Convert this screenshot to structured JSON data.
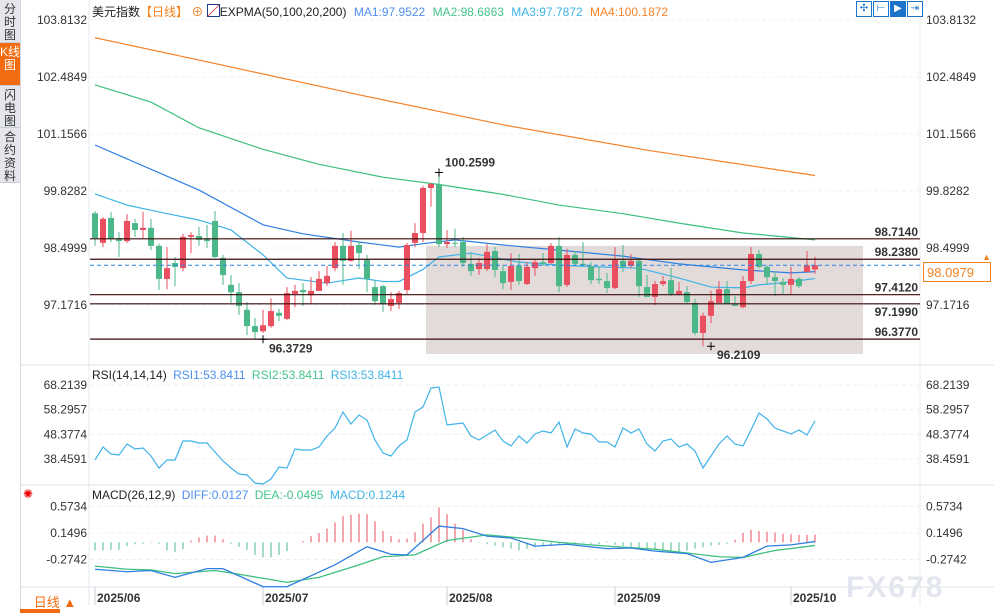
{
  "sidebar": {
    "tabs": [
      {
        "label": "分时图",
        "active": false
      },
      {
        "label": "K线图",
        "active": true
      },
      {
        "label": "闪电图",
        "active": false
      },
      {
        "label": "合约资料",
        "active": false
      }
    ]
  },
  "header": {
    "symbol": "美元指数",
    "period": "【日线】",
    "indicator": "EXPMA(50,100,20,200)",
    "ma1": "MA1:97.9522",
    "ma2": "MA2:98.6863",
    "ma3": "MA3:97.7872",
    "ma4": "MA4:100.1872",
    "tools": [
      "crosshair-icon",
      "range-select-icon",
      "play-forward-icon",
      "exit-right-icon"
    ]
  },
  "rsi_header": {
    "title": "RSI(14,14,14)",
    "rsi1": "RSI1:53.8411",
    "rsi2": "RSI2:53.8411",
    "rsi3": "RSI3:53.8411"
  },
  "macd_header": {
    "title": "MACD(26,12,9)",
    "diff": "DIFF:0.0127",
    "dea": "DEA:-0.0495",
    "macd": "MACD:0.1244"
  },
  "current_price": "98.0979",
  "period_button": "日线 ▲",
  "watermark": "FX678",
  "colors": {
    "up": "#e94f5e",
    "down": "#4cb88a",
    "ma1": "#2f7fe0",
    "ma2": "#3cbf7f",
    "ma3": "#3fb3e8",
    "ma4": "#f5822a",
    "accent": "#f26b10",
    "zone": "#ddd5d4"
  },
  "chart_data": [
    {
      "type": "candlestick",
      "title": "美元指数",
      "y_ticks": [
        "103.8132",
        "102.4849",
        "101.1566",
        "99.8282",
        "98.4999",
        "97.1716"
      ],
      "x_ticks": [
        "2025/06",
        "2025/07",
        "2025/08",
        "2025/09",
        "2025/10"
      ],
      "ylim": [
        95.9,
        104.2
      ],
      "candles_ohlc": [
        [
          99.31,
          99.36,
          98.55,
          98.73
        ],
        [
          98.62,
          99.22,
          98.52,
          99.18
        ],
        [
          99.2,
          99.34,
          98.64,
          98.71
        ],
        [
          98.73,
          98.87,
          98.29,
          98.66
        ],
        [
          98.66,
          99.29,
          98.62,
          99.13
        ],
        [
          99.08,
          99.18,
          98.76,
          98.92
        ],
        [
          98.92,
          99.34,
          98.73,
          98.97
        ],
        [
          98.97,
          99.18,
          98.45,
          98.55
        ],
        [
          98.55,
          98.6,
          97.52,
          97.78
        ],
        [
          97.78,
          98.52,
          97.54,
          98.03
        ],
        [
          98.15,
          98.29,
          97.61,
          98.06
        ],
        [
          98.03,
          98.83,
          97.96,
          98.76
        ],
        [
          98.76,
          98.87,
          98.38,
          98.8
        ],
        [
          98.78,
          98.99,
          98.55,
          98.69
        ],
        [
          98.71,
          99.04,
          98.5,
          98.66
        ],
        [
          99.13,
          99.36,
          98.27,
          98.29
        ],
        [
          98.27,
          98.34,
          97.64,
          97.87
        ],
        [
          97.64,
          97.87,
          97.22,
          97.47
        ],
        [
          97.47,
          97.68,
          96.94,
          97.15
        ],
        [
          97.06,
          97.24,
          96.47,
          96.68
        ],
        [
          96.68,
          96.87,
          96.37,
          96.54
        ],
        [
          96.56,
          97.06,
          96.52,
          96.7
        ],
        [
          96.68,
          97.33,
          96.64,
          97.03
        ],
        [
          96.99,
          97.08,
          96.8,
          96.92
        ],
        [
          96.85,
          97.59,
          96.82,
          97.45
        ],
        [
          97.43,
          97.64,
          97.12,
          97.5
        ],
        [
          97.52,
          97.68,
          97.15,
          97.47
        ],
        [
          97.4,
          97.82,
          97.19,
          97.5
        ],
        [
          97.5,
          97.96,
          97.5,
          97.78
        ],
        [
          97.68,
          98.08,
          97.61,
          97.85
        ],
        [
          98.03,
          98.64,
          97.96,
          98.55
        ],
        [
          98.55,
          98.85,
          97.64,
          98.2
        ],
        [
          98.2,
          98.9,
          98.18,
          98.55
        ],
        [
          98.57,
          98.66,
          98.01,
          98.38
        ],
        [
          98.22,
          98.34,
          97.47,
          97.78
        ],
        [
          97.59,
          97.75,
          97.17,
          97.26
        ],
        [
          97.61,
          97.64,
          97.01,
          97.19
        ],
        [
          97.15,
          97.47,
          97.03,
          97.31
        ],
        [
          97.22,
          97.5,
          97.08,
          97.45
        ],
        [
          97.52,
          98.62,
          97.43,
          98.57
        ],
        [
          98.62,
          99.08,
          98.52,
          98.85
        ],
        [
          98.85,
          99.95,
          98.64,
          99.9
        ],
        [
          99.9,
          100.02,
          99.46,
          99.99
        ],
        [
          99.97,
          100.26,
          98.52,
          98.59
        ],
        [
          98.59,
          98.92,
          98.5,
          98.64
        ],
        [
          98.62,
          98.95,
          98.52,
          98.6
        ],
        [
          98.64,
          98.76,
          98.06,
          98.15
        ],
        [
          98.13,
          98.38,
          97.85,
          97.96
        ],
        [
          98.01,
          98.27,
          97.87,
          98.15
        ],
        [
          98.01,
          98.59,
          97.96,
          98.41
        ],
        [
          98.43,
          98.52,
          97.82,
          97.99
        ],
        [
          97.96,
          98.1,
          97.54,
          97.68
        ],
        [
          97.71,
          98.38,
          97.52,
          98.08
        ],
        [
          98.08,
          98.36,
          97.64,
          97.73
        ],
        [
          97.66,
          98.17,
          97.64,
          98.06
        ],
        [
          98.03,
          98.24,
          97.85,
          98.17
        ],
        [
          98.17,
          98.38,
          98.08,
          98.13
        ],
        [
          98.15,
          98.62,
          98.13,
          98.55
        ],
        [
          98.55,
          98.76,
          97.47,
          97.61
        ],
        [
          97.64,
          98.48,
          97.59,
          98.34
        ],
        [
          98.34,
          98.43,
          98.08,
          98.13
        ],
        [
          98.13,
          98.64,
          98.08,
          98.1
        ],
        [
          98.08,
          98.17,
          97.66,
          97.75
        ],
        [
          97.78,
          98.06,
          97.66,
          97.75
        ],
        [
          97.73,
          97.92,
          97.45,
          97.57
        ],
        [
          97.57,
          98.52,
          97.54,
          98.22
        ],
        [
          98.2,
          98.57,
          97.94,
          98.06
        ],
        [
          98.08,
          98.36,
          98.03,
          98.2
        ],
        [
          98.2,
          98.27,
          97.36,
          97.61
        ],
        [
          97.59,
          97.87,
          97.36,
          97.36
        ],
        [
          97.36,
          97.73,
          97.17,
          97.66
        ],
        [
          97.66,
          97.85,
          97.61,
          97.73
        ],
        [
          97.75,
          98.03,
          97.38,
          97.43
        ],
        [
          97.43,
          97.71,
          97.4,
          97.5
        ],
        [
          97.47,
          97.61,
          97.19,
          97.24
        ],
        [
          97.22,
          97.31,
          96.47,
          96.52
        ],
        [
          96.52,
          96.99,
          96.21,
          96.92
        ],
        [
          96.92,
          97.5,
          96.75,
          97.26
        ],
        [
          97.22,
          97.73,
          97.29,
          97.54
        ],
        [
          97.54,
          97.73,
          97.19,
          97.19
        ],
        [
          97.19,
          97.38,
          97.15,
          97.15
        ],
        [
          97.12,
          97.85,
          97.1,
          97.73
        ],
        [
          97.73,
          98.52,
          97.66,
          98.36
        ],
        [
          98.36,
          98.45,
          98.03,
          98.06
        ],
        [
          98.06,
          98.1,
          97.64,
          97.82
        ],
        [
          97.82,
          97.96,
          97.38,
          97.73
        ],
        [
          97.71,
          97.8,
          97.43,
          97.64
        ],
        [
          97.64,
          98.06,
          97.43,
          97.78
        ],
        [
          97.78,
          97.82,
          97.57,
          97.61
        ],
        [
          97.94,
          98.43,
          97.94,
          98.0979
        ],
        [
          98.0,
          98.3,
          97.9,
          98.0979
        ]
      ],
      "ma_series": [
        {
          "name": "MA1",
          "points": [
            [
              0,
              100.9
            ],
            [
              13,
              99.85
            ],
            [
              21,
              99.04
            ],
            [
              26,
              98.83
            ],
            [
              33,
              98.64
            ],
            [
              38,
              98.52
            ],
            [
              41,
              98.6
            ],
            [
              45,
              98.69
            ],
            [
              51,
              98.57
            ],
            [
              58,
              98.45
            ],
            [
              66,
              98.31
            ],
            [
              73,
              98.13
            ],
            [
              81,
              97.99
            ],
            [
              87,
              97.92
            ],
            [
              90,
              97.95
            ]
          ]
        },
        {
          "name": "MA2",
          "points": [
            [
              0,
              102.3
            ],
            [
              7,
              101.9
            ],
            [
              13,
              101.3
            ],
            [
              21,
              100.8
            ],
            [
              28,
              100.45
            ],
            [
              36,
              100.15
            ],
            [
              43,
              99.98
            ],
            [
              51,
              99.75
            ],
            [
              58,
              99.5
            ],
            [
              66,
              99.3
            ],
            [
              73,
              99.08
            ],
            [
              81,
              98.85
            ],
            [
              90,
              98.69
            ]
          ]
        },
        {
          "name": "MA3",
          "points": [
            [
              0,
              99.76
            ],
            [
              4,
              99.5
            ],
            [
              8,
              99.34
            ],
            [
              13,
              99.15
            ],
            [
              17,
              98.92
            ],
            [
              21,
              98.34
            ],
            [
              24,
              97.8
            ],
            [
              29,
              97.68
            ],
            [
              33,
              97.8
            ],
            [
              36,
              97.72
            ],
            [
              38,
              97.72
            ],
            [
              41,
              98.0
            ],
            [
              43,
              98.29
            ],
            [
              47,
              98.38
            ],
            [
              53,
              98.17
            ],
            [
              58,
              98.1
            ],
            [
              63,
              98.06
            ],
            [
              68,
              98.03
            ],
            [
              73,
              97.8
            ],
            [
              77,
              97.59
            ],
            [
              81,
              97.57
            ],
            [
              83,
              97.64
            ],
            [
              87,
              97.71
            ],
            [
              90,
              97.79
            ]
          ]
        },
        {
          "name": "MA4",
          "points": [
            [
              0,
              103.4
            ],
            [
              13,
              102.88
            ],
            [
              33,
              102.07
            ],
            [
              51,
              101.37
            ],
            [
              69,
              100.78
            ],
            [
              90,
              100.19
            ]
          ]
        }
      ],
      "levels": [
        "98.7140",
        "98.2380",
        "97.4120",
        "97.1990",
        "96.3770"
      ],
      "zone": {
        "from_index": 42,
        "top": 98.55,
        "bottom": 96.03
      },
      "annotations": [
        {
          "text": "100.2599",
          "index": 43,
          "value": 100.2599,
          "kind": "high"
        },
        {
          "text": "96.3729",
          "index": 21,
          "value": 96.3729,
          "kind": "low"
        },
        {
          "text": "96.2109",
          "index": 77,
          "value": 96.2109,
          "kind": "low"
        }
      ]
    },
    {
      "type": "line",
      "title": "RSI(14,14,14)",
      "y_ticks": [
        "68.2139",
        "58.2957",
        "48.3774",
        "38.4591"
      ],
      "values": [
        38.06,
        43.28,
        40.47,
        40.07,
        44.49,
        42.48,
        42.88,
        39.67,
        34.84,
        38.06,
        38.06,
        45.7,
        45.7,
        44.89,
        44.89,
        41.27,
        37.66,
        34.84,
        32.43,
        32.03,
        28.81,
        28.41,
        30.42,
        35.24,
        34.84,
        42.48,
        42.08,
        42.08,
        43.28,
        47.7,
        50.92,
        57.35,
        52.53,
        56.15,
        54.14,
        46.1,
        40.87,
        39.67,
        43.69,
        46.1,
        57.35,
        59.36,
        67.0,
        67.4,
        52.13,
        52.53,
        52.93,
        47.7,
        46.1,
        48.11,
        50.12,
        45.7,
        43.69,
        47.7,
        44.89,
        48.51,
        49.72,
        48.91,
        53.33,
        43.28,
        50.52,
        48.91,
        48.51,
        45.29,
        45.29,
        43.28,
        50.92,
        48.91,
        50.52,
        44.49,
        41.67,
        45.7,
        46.5,
        43.28,
        44.49,
        41.67,
        34.84,
        39.67,
        44.49,
        47.7,
        44.49,
        43.69,
        50.12,
        56.95,
        54.54,
        50.92,
        49.72,
        48.51,
        50.12,
        48.11,
        53.84
      ]
    },
    {
      "type": "bar+line",
      "title": "MACD(26,12,9)",
      "y_ticks": [
        "0.5734",
        "0.1496",
        "-0.2742"
      ],
      "histogram": [
        -0.13,
        -0.13,
        -0.12,
        -0.12,
        -0.06,
        -0.03,
        -0.02,
        -0.01,
        -0.02,
        -0.13,
        -0.15,
        -0.11,
        0.03,
        0.08,
        0.11,
        0.11,
        0.05,
        -0.02,
        -0.07,
        -0.12,
        -0.2,
        -0.24,
        -0.24,
        -0.2,
        -0.14,
        0.0,
        0.02,
        0.1,
        0.15,
        0.22,
        0.32,
        0.42,
        0.44,
        0.46,
        0.45,
        0.34,
        0.18,
        0.1,
        0.05,
        0.06,
        0.16,
        0.3,
        0.4,
        0.56,
        0.45,
        0.3,
        0.2,
        0.05,
        -0.01,
        -0.03,
        -0.05,
        -0.08,
        -0.1,
        -0.13,
        -0.1,
        -0.08,
        -0.06,
        -0.05,
        -0.03,
        -0.01,
        -0.02,
        -0.01,
        -0.02,
        -0.03,
        0.01,
        -0.04,
        -0.06,
        -0.08,
        -0.1,
        -0.1,
        -0.12,
        -0.13,
        -0.14,
        -0.15,
        -0.13,
        -0.1,
        -0.08,
        -0.05,
        -0.04,
        -0.02,
        0.04,
        0.15,
        0.2,
        0.18,
        0.17,
        0.16,
        0.14,
        0.13,
        0.12,
        0.12,
        0.1244
      ],
      "diff": [
        [
          0,
          -0.43
        ],
        [
          4,
          -0.47
        ],
        [
          7,
          -0.45
        ],
        [
          10,
          -0.56
        ],
        [
          14,
          -0.42
        ],
        [
          16,
          -0.42
        ],
        [
          21,
          -0.71
        ],
        [
          24,
          -0.71
        ],
        [
          30,
          -0.36
        ],
        [
          34,
          -0.07
        ],
        [
          37,
          -0.19
        ],
        [
          39,
          -0.2
        ],
        [
          43,
          0.26
        ],
        [
          46,
          0.22
        ],
        [
          49,
          0.1
        ],
        [
          52,
          0.07
        ],
        [
          55,
          -0.06
        ],
        [
          59,
          -0.03
        ],
        [
          64,
          -0.1
        ],
        [
          67,
          -0.09
        ],
        [
          70,
          -0.14
        ],
        [
          74,
          -0.18
        ],
        [
          77,
          -0.32
        ],
        [
          81,
          -0.24
        ],
        [
          84,
          -0.06
        ],
        [
          87,
          -0.04
        ],
        [
          90,
          0.0127
        ]
      ],
      "dea": [
        [
          0,
          -0.38
        ],
        [
          4,
          -0.43
        ],
        [
          7,
          -0.44
        ],
        [
          10,
          -0.5
        ],
        [
          15,
          -0.45
        ],
        [
          18,
          -0.51
        ],
        [
          24,
          -0.64
        ],
        [
          28,
          -0.56
        ],
        [
          33,
          -0.36
        ],
        [
          36,
          -0.23
        ],
        [
          40,
          -0.2
        ],
        [
          44,
          0.03
        ],
        [
          49,
          0.12
        ],
        [
          54,
          0.06
        ],
        [
          58,
          0.0
        ],
        [
          64,
          -0.06
        ],
        [
          70,
          -0.11
        ],
        [
          78,
          -0.23
        ],
        [
          81,
          -0.24
        ],
        [
          85,
          -0.13
        ],
        [
          90,
          -0.0495
        ]
      ]
    }
  ]
}
